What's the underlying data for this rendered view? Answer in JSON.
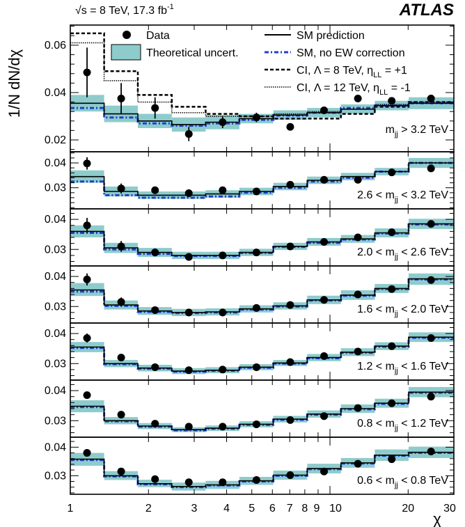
{
  "header": {
    "energy_lumi": "√s = 8 TeV, 17.3 fb",
    "lumi_superscript": "-1",
    "experiment": "ATLAS"
  },
  "axes": {
    "ylabel": "1/N dN/dχ",
    "xlabel": "χ",
    "x_ticks": [
      "1",
      "2",
      "3",
      "4",
      "5",
      "6",
      "7",
      "8",
      "9",
      "10",
      "20",
      "30"
    ]
  },
  "legend": {
    "data": "Data",
    "theory_band": "Theoretical uncert.",
    "sm": "SM prediction",
    "sm_no_ew": "SM, no EW correction",
    "ci8": "CI, Λ = 8 TeV, η",
    "ci8_sub": "LL",
    "ci8_tail": " = +1",
    "ci12": "CI, Λ = 12 TeV, η",
    "ci12_sub": "LL",
    "ci12_tail": " = -1"
  },
  "colors": {
    "band": "#8ecccc",
    "sm": "#000000",
    "sm_no_ew": "#1f3fcc",
    "data": "#000000"
  },
  "chart_data": {
    "type": "line",
    "x_scale": "log",
    "xlim": [
      1,
      30
    ],
    "chi_bin_edges": [
      1.0,
      1.35,
      1.82,
      2.46,
      3.32,
      4.48,
      6.05,
      8.17,
      11.02,
      14.88,
      20.09,
      30.0
    ],
    "x_centers": [
      1.16,
      1.57,
      2.12,
      2.86,
      3.86,
      5.21,
      7.03,
      9.49,
      12.81,
      17.29,
      24.5
    ],
    "panels": [
      {
        "label": "m",
        "label_sub": "jj",
        "label_pre": "",
        "label_post": " > 3.2 TeV",
        "ylim": [
          0.015,
          0.0685
        ],
        "y_ticks": [
          "0.02",
          "0.04",
          "0.06"
        ],
        "y_tick_values": [
          0.02,
          0.04,
          0.06
        ],
        "sm": [
          0.0355,
          0.031,
          0.028,
          0.0265,
          0.0275,
          0.029,
          0.0305,
          0.0315,
          0.033,
          0.0345,
          0.0355
        ],
        "sm_no_ew": [
          0.0335,
          0.0295,
          0.027,
          0.026,
          0.027,
          0.0285,
          0.0303,
          0.0315,
          0.0335,
          0.0345,
          0.0355
        ],
        "band_low": [
          0.032,
          0.0275,
          0.025,
          0.0235,
          0.0245,
          0.027,
          0.0285,
          0.0295,
          0.031,
          0.0325,
          0.033
        ],
        "band_high": [
          0.039,
          0.0345,
          0.031,
          0.0295,
          0.0305,
          0.031,
          0.0325,
          0.0335,
          0.035,
          0.0365,
          0.038
        ],
        "ci8": [
          0.065,
          0.049,
          0.039,
          0.034,
          0.031,
          0.03,
          0.029,
          0.029,
          0.031,
          0.034,
          0.036
        ],
        "ci12": [
          0.061,
          0.045,
          0.036,
          0.0315,
          0.03,
          0.03,
          0.031,
          0.032,
          0.033,
          0.035,
          0.036
        ],
        "data": [
          0.0485,
          0.0375,
          0.0335,
          0.0225,
          0.0275,
          0.0295,
          0.0255,
          0.0325,
          0.0375,
          0.0365,
          0.0375
        ],
        "data_err": [
          0.0105,
          0.0065,
          0.0045,
          0.003,
          0.0025,
          0.002,
          0.0015,
          0.001,
          0.0012,
          0.001,
          0.001
        ]
      },
      {
        "label": "m",
        "label_sub": "jj",
        "label_pre": "2.6 < ",
        "label_post": " < 3.2 TeV",
        "ylim": [
          0.0215,
          0.0445
        ],
        "y_ticks": [
          "0.03",
          "0.04"
        ],
        "y_tick_values": [
          0.03,
          0.04
        ],
        "sm": [
          0.0345,
          0.0285,
          0.027,
          0.027,
          0.0275,
          0.0285,
          0.0305,
          0.033,
          0.0345,
          0.0365,
          0.04
        ],
        "sm_no_ew": [
          0.0325,
          0.027,
          0.026,
          0.026,
          0.0265,
          0.028,
          0.03,
          0.0325,
          0.034,
          0.0365,
          0.04
        ],
        "band_low": [
          0.032,
          0.0265,
          0.0255,
          0.0255,
          0.026,
          0.027,
          0.029,
          0.0315,
          0.033,
          0.035,
          0.038
        ],
        "band_high": [
          0.037,
          0.0305,
          0.0285,
          0.0285,
          0.029,
          0.03,
          0.032,
          0.0345,
          0.036,
          0.038,
          0.042
        ],
        "ci8": [],
        "ci12": [],
        "data": [
          0.0398,
          0.0297,
          0.029,
          0.0278,
          0.029,
          0.0285,
          0.0312,
          0.0332,
          0.0332,
          0.0362,
          0.0378
        ],
        "data_err": [
          0.0025,
          0.002,
          0.0015,
          0.0015,
          0.0011,
          0.0009,
          0.0008,
          0.0007,
          0.0007,
          0.0007,
          0.0007
        ]
      },
      {
        "label": "m",
        "label_sub": "jj",
        "label_pre": "2.0 < ",
        "label_post": " < 2.6 TeV",
        "ylim": [
          0.0245,
          0.0435
        ],
        "y_ticks": [
          "0.03",
          "0.04"
        ],
        "y_tick_values": [
          0.03,
          0.04
        ],
        "sm": [
          0.036,
          0.0305,
          0.029,
          0.028,
          0.028,
          0.029,
          0.031,
          0.0325,
          0.0335,
          0.0355,
          0.0385
        ],
        "sm_no_ew": [
          0.0355,
          0.03,
          0.0285,
          0.0278,
          0.0278,
          0.0288,
          0.0308,
          0.0322,
          0.0333,
          0.0353,
          0.0383
        ],
        "band_low": [
          0.034,
          0.0288,
          0.0275,
          0.0268,
          0.0268,
          0.0278,
          0.0298,
          0.0312,
          0.0322,
          0.034,
          0.0368
        ],
        "band_high": [
          0.038,
          0.0322,
          0.0305,
          0.0292,
          0.0292,
          0.0302,
          0.0322,
          0.0338,
          0.0348,
          0.037,
          0.0402
        ],
        "ci8": [],
        "ci12": [],
        "data": [
          0.038,
          0.031,
          0.029,
          0.0275,
          0.028,
          0.029,
          0.031,
          0.0325,
          0.034,
          0.0357,
          0.0385
        ],
        "data_err": [
          0.0025,
          0.0018,
          0.0013,
          0.001,
          0.0008,
          0.0007,
          0.0006,
          0.0006,
          0.0006,
          0.0006,
          0.0006
        ]
      },
      {
        "label": "m",
        "label_sub": "jj",
        "label_pre": "1.6 < ",
        "label_post": " < 2.0 TeV",
        "ylim": [
          0.0245,
          0.0435
        ],
        "y_ticks": [
          "0.03",
          "0.04"
        ],
        "y_tick_values": [
          0.03,
          0.04
        ],
        "sm": [
          0.0355,
          0.0305,
          0.0285,
          0.028,
          0.0282,
          0.0292,
          0.0302,
          0.0322,
          0.0338,
          0.036,
          0.0392
        ],
        "sm_no_ew": [
          0.035,
          0.0302,
          0.0282,
          0.0278,
          0.028,
          0.029,
          0.03,
          0.032,
          0.0336,
          0.0358,
          0.039
        ],
        "band_low": [
          0.0335,
          0.029,
          0.0272,
          0.0268,
          0.027,
          0.028,
          0.029,
          0.0308,
          0.0322,
          0.0345,
          0.0372
        ],
        "band_high": [
          0.0378,
          0.032,
          0.0298,
          0.0292,
          0.0294,
          0.0304,
          0.0314,
          0.0336,
          0.0354,
          0.0375,
          0.041
        ],
        "ci8": [],
        "ci12": [],
        "data": [
          0.039,
          0.0315,
          0.0288,
          0.028,
          0.028,
          0.0295,
          0.0305,
          0.0322,
          0.034,
          0.0358,
          0.0388
        ],
        "data_err": [
          0.002,
          0.0015,
          0.001,
          0.0008,
          0.0007,
          0.0006,
          0.0005,
          0.0005,
          0.0005,
          0.0005,
          0.0005
        ]
      },
      {
        "label": "m",
        "label_sub": "jj",
        "label_pre": "1.2 < ",
        "label_post": " < 1.6 TeV",
        "ylim": [
          0.0245,
          0.0435
        ],
        "y_ticks": [
          "0.03",
          "0.04"
        ],
        "y_tick_values": [
          0.03,
          0.04
        ],
        "sm": [
          0.0355,
          0.03,
          0.0285,
          0.0275,
          0.0278,
          0.0288,
          0.0302,
          0.032,
          0.0338,
          0.0358,
          0.0388
        ],
        "sm_no_ew": [
          0.0352,
          0.0298,
          0.0283,
          0.0273,
          0.0276,
          0.0286,
          0.03,
          0.0318,
          0.0336,
          0.0356,
          0.0386
        ],
        "band_low": [
          0.0338,
          0.0288,
          0.0274,
          0.0265,
          0.0268,
          0.0278,
          0.0292,
          0.0308,
          0.0325,
          0.0345,
          0.0372
        ],
        "band_high": [
          0.0372,
          0.0312,
          0.0296,
          0.0285,
          0.0288,
          0.0298,
          0.0312,
          0.0332,
          0.0351,
          0.0371,
          0.0404
        ],
        "ci8": [],
        "ci12": [],
        "data": [
          0.0385,
          0.032,
          0.0288,
          0.0278,
          0.028,
          0.0288,
          0.0305,
          0.0325,
          0.034,
          0.0358,
          0.0385
        ],
        "data_err": [
          0.0015,
          0.001,
          0.0008,
          0.0007,
          0.0006,
          0.0005,
          0.0005,
          0.0005,
          0.0005,
          0.0005,
          0.0005
        ]
      },
      {
        "label": "m",
        "label_sub": "jj",
        "label_pre": "0.8 < ",
        "label_post": " < 1.2 TeV",
        "ylim": [
          0.0245,
          0.0435
        ],
        "y_ticks": [
          "0.03",
          "0.04"
        ],
        "y_tick_values": [
          0.03,
          0.04
        ],
        "sm": [
          0.0348,
          0.03,
          0.0282,
          0.027,
          0.0275,
          0.0288,
          0.0305,
          0.0322,
          0.034,
          0.0358,
          0.0395
        ],
        "sm_no_ew": [
          0.0345,
          0.0298,
          0.028,
          0.0268,
          0.0273,
          0.0286,
          0.0303,
          0.032,
          0.0338,
          0.0356,
          0.0393
        ],
        "band_low": [
          0.0328,
          0.0288,
          0.0272,
          0.0262,
          0.0266,
          0.0278,
          0.0294,
          0.031,
          0.0326,
          0.0343,
          0.0378
        ],
        "band_high": [
          0.0368,
          0.0312,
          0.0292,
          0.0278,
          0.0284,
          0.0298,
          0.0316,
          0.0334,
          0.0354,
          0.0373,
          0.0412
        ],
        "ci8": [],
        "ci12": [],
        "data": [
          0.0385,
          0.032,
          0.029,
          0.028,
          0.028,
          0.0288,
          0.0302,
          0.0315,
          0.0342,
          0.0358,
          0.038
        ],
        "data_err": [
          0.0012,
          0.0009,
          0.0007,
          0.0006,
          0.0005,
          0.0005,
          0.0005,
          0.0005,
          0.0005,
          0.0005,
          0.0005
        ]
      },
      {
        "label": "m",
        "label_sub": "jj",
        "label_pre": "0.6 < ",
        "label_post": " < 0.8 TeV",
        "ylim": [
          0.0235,
          0.0435
        ],
        "y_ticks": [
          "0.03",
          "0.04"
        ],
        "y_tick_values": [
          0.03,
          0.04
        ],
        "sm": [
          0.0358,
          0.03,
          0.0272,
          0.0262,
          0.0268,
          0.0282,
          0.0302,
          0.0325,
          0.0345,
          0.0372,
          0.0382
        ],
        "sm_no_ew": [
          0.0355,
          0.0298,
          0.027,
          0.026,
          0.0266,
          0.028,
          0.03,
          0.0323,
          0.0343,
          0.037,
          0.038
        ],
        "band_low": [
          0.0335,
          0.0285,
          0.026,
          0.0248,
          0.0254,
          0.0268,
          0.0286,
          0.0308,
          0.0328,
          0.0352,
          0.0362
        ],
        "band_high": [
          0.038,
          0.0316,
          0.0286,
          0.0276,
          0.0282,
          0.0296,
          0.0318,
          0.0342,
          0.0362,
          0.0392,
          0.0402
        ],
        "ci8": [],
        "ci12": [],
        "data": [
          0.038,
          0.0315,
          0.0288,
          0.0277,
          0.0277,
          0.0285,
          0.0302,
          0.0315,
          0.0342,
          0.0358,
          0.0385
        ],
        "data_err": [
          0.001,
          0.0008,
          0.0006,
          0.0005,
          0.0005,
          0.0005,
          0.0005,
          0.0005,
          0.0005,
          0.0005,
          0.0005
        ]
      }
    ]
  }
}
